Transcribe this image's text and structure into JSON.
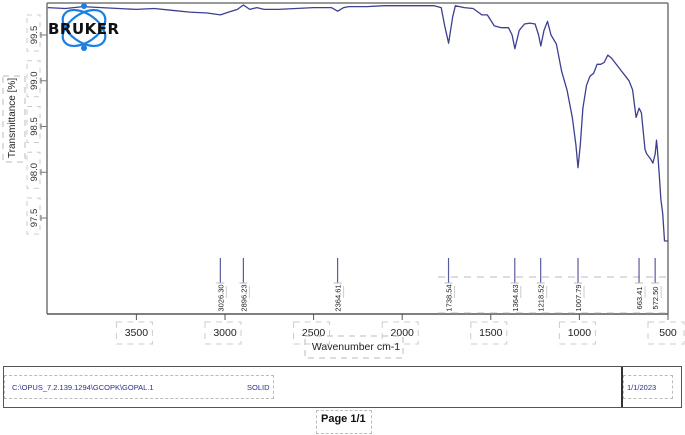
{
  "logo": {
    "text": "BRUKER",
    "ring_color": "#1a7fe0"
  },
  "chart_data": {
    "type": "line",
    "title": "",
    "xlabel": "Wavenumber cm-1",
    "ylabel": "Transmittance [%]",
    "x_reversed": true,
    "xlim": [
      4000,
      500
    ],
    "ylim": [
      96.95,
      99.88
    ],
    "grid": false,
    "legend": null,
    "line_color": "#3d3f8f",
    "x_ticks": [
      3500,
      3000,
      2500,
      2000,
      1500,
      1000,
      500
    ],
    "x_tick_labels": [
      "3500",
      "3000",
      "2500",
      "2000",
      "1500",
      "1000",
      "500"
    ],
    "y_ticks": [
      99.5,
      99.0,
      98.5,
      98.0,
      97.5
    ],
    "y_tick_labels": [
      "99.5",
      "99.0",
      "98.5",
      "98.0",
      "97.5"
    ],
    "series": [
      {
        "name": "GOPAL.1",
        "x": [
          4000,
          3900,
          3800,
          3700,
          3600,
          3500,
          3400,
          3300,
          3200,
          3100,
          3026,
          2980,
          2930,
          2896,
          2860,
          2820,
          2780,
          2700,
          2600,
          2500,
          2400,
          2364,
          2330,
          2300,
          2200,
          2100,
          2000,
          1900,
          1820,
          1780,
          1760,
          1738,
          1715,
          1700,
          1650,
          1600,
          1550,
          1520,
          1480,
          1440,
          1400,
          1380,
          1364,
          1340,
          1310,
          1280,
          1250,
          1230,
          1218,
          1200,
          1180,
          1160,
          1130,
          1100,
          1070,
          1040,
          1020,
          1008,
          995,
          980,
          960,
          940,
          920,
          900,
          880,
          860,
          840,
          820,
          800,
          780,
          760,
          740,
          720,
          700,
          690,
          680,
          663,
          650,
          640,
          630,
          620,
          600,
          585,
          572,
          565,
          560,
          550,
          540,
          530,
          520,
          510,
          500
        ],
        "y": [
          99.8,
          99.79,
          99.81,
          99.8,
          99.79,
          99.78,
          99.79,
          99.77,
          99.75,
          99.74,
          99.72,
          99.75,
          99.78,
          99.84,
          99.78,
          99.8,
          99.78,
          99.78,
          99.79,
          99.8,
          99.8,
          99.76,
          99.8,
          99.81,
          99.81,
          99.82,
          99.82,
          99.82,
          99.82,
          99.8,
          99.6,
          99.41,
          99.7,
          99.82,
          99.8,
          99.79,
          99.72,
          99.72,
          99.6,
          99.58,
          99.58,
          99.5,
          99.35,
          99.55,
          99.62,
          99.63,
          99.62,
          99.5,
          99.38,
          99.55,
          99.65,
          99.5,
          99.4,
          99.1,
          98.9,
          98.6,
          98.3,
          98.05,
          98.3,
          98.7,
          98.95,
          99.05,
          99.08,
          99.18,
          99.18,
          99.2,
          99.28,
          99.25,
          99.2,
          99.15,
          99.1,
          99.05,
          99.0,
          98.9,
          98.75,
          98.6,
          98.7,
          98.65,
          98.45,
          98.25,
          98.2,
          98.15,
          98.1,
          98.2,
          98.35,
          98.25,
          98.0,
          97.7,
          97.55,
          97.25,
          97.0,
          96.98
        ]
      }
    ],
    "peak_labels": [
      "3026.30",
      "2896.23",
      "2364.61",
      "1738.54",
      "1364.63",
      "1218.52",
      "1007.79",
      "663.41",
      "572.50"
    ],
    "peak_positions": [
      3026.3,
      2896.23,
      2364.61,
      1738.54,
      1364.63,
      1218.52,
      1007.79,
      663.41,
      572.5
    ]
  },
  "footer": {
    "file_path": "C:\\OPUS_7.2.139.1294\\GCOPK\\GOPAL.1",
    "sample_form": "SOLID",
    "date": "1/1/2023",
    "page": "Page 1/1"
  }
}
